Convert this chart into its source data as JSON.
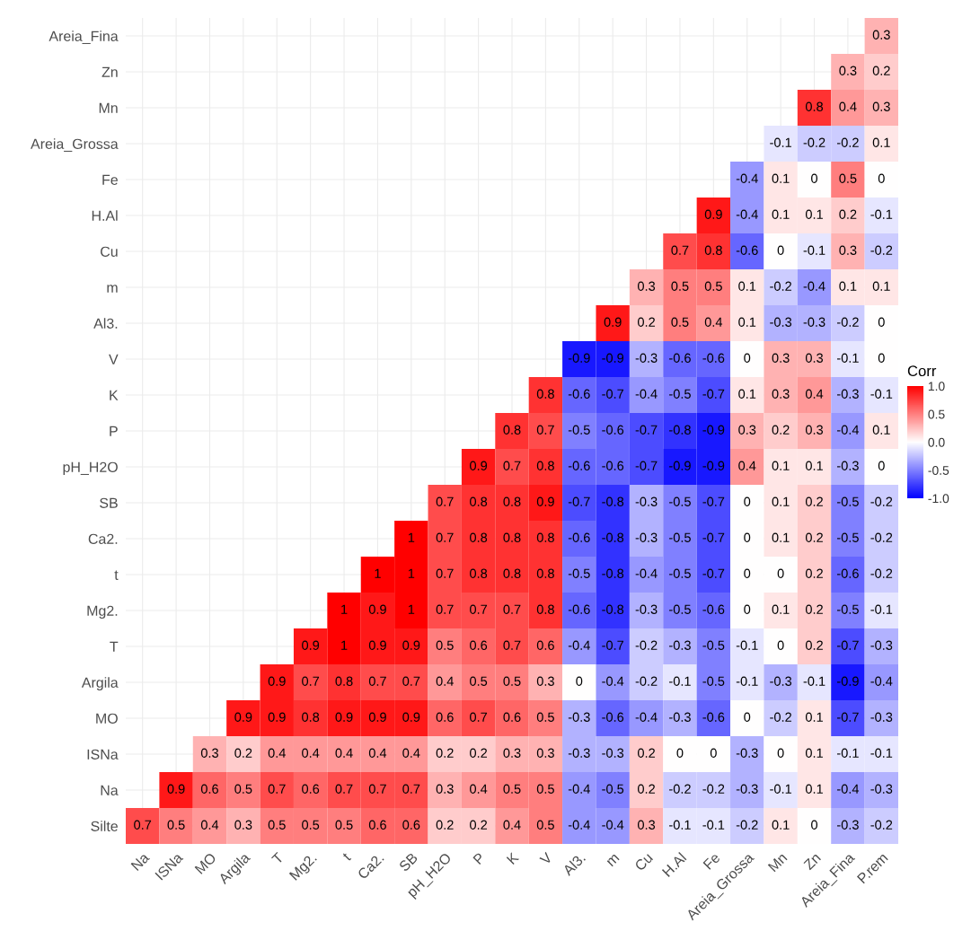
{
  "chart_data": {
    "type": "heatmap",
    "categories": [
      "Na",
      "ISNa",
      "MO",
      "Argila",
      "T",
      "Mg2.",
      "t",
      "Ca2.",
      "SB",
      "pH_H2O",
      "P",
      "K",
      "V",
      "Al3.",
      "m",
      "Cu",
      "H.Al",
      "Fe",
      "Areia_Grossa",
      "Mn",
      "Zn",
      "Areia_Fina",
      "P.rem"
    ],
    "y_categories": [
      "Areia_Fina",
      "Zn",
      "Mn",
      "Areia_Grossa",
      "Fe",
      "H.Al",
      "Cu",
      "m",
      "Al3.",
      "V",
      "K",
      "P",
      "pH_H2O",
      "SB",
      "Ca2.",
      "t",
      "Mg2.",
      "T",
      "Argila",
      "MO",
      "ISNa",
      "Na",
      "Silte"
    ],
    "cells": [
      [
        null,
        null,
        null,
        null,
        null,
        null,
        null,
        null,
        null,
        null,
        null,
        null,
        null,
        null,
        null,
        null,
        null,
        null,
        null,
        null,
        null,
        null,
        0.3
      ],
      [
        null,
        null,
        null,
        null,
        null,
        null,
        null,
        null,
        null,
        null,
        null,
        null,
        null,
        null,
        null,
        null,
        null,
        null,
        null,
        null,
        null,
        0.3,
        0.2
      ],
      [
        null,
        null,
        null,
        null,
        null,
        null,
        null,
        null,
        null,
        null,
        null,
        null,
        null,
        null,
        null,
        null,
        null,
        null,
        null,
        null,
        0.8,
        0.4,
        0.3
      ],
      [
        null,
        null,
        null,
        null,
        null,
        null,
        null,
        null,
        null,
        null,
        null,
        null,
        null,
        null,
        null,
        null,
        null,
        null,
        null,
        -0.1,
        -0.2,
        -0.2,
        0.1
      ],
      [
        null,
        null,
        null,
        null,
        null,
        null,
        null,
        null,
        null,
        null,
        null,
        null,
        null,
        null,
        null,
        null,
        null,
        null,
        -0.4,
        0.1,
        0,
        0.5,
        0
      ],
      [
        null,
        null,
        null,
        null,
        null,
        null,
        null,
        null,
        null,
        null,
        null,
        null,
        null,
        null,
        null,
        null,
        null,
        0.9,
        -0.4,
        0.1,
        0.1,
        0.2,
        -0.1
      ],
      [
        null,
        null,
        null,
        null,
        null,
        null,
        null,
        null,
        null,
        null,
        null,
        null,
        null,
        null,
        null,
        null,
        0.7,
        0.8,
        -0.6,
        0,
        -0.1,
        0.3,
        -0.2
      ],
      [
        null,
        null,
        null,
        null,
        null,
        null,
        null,
        null,
        null,
        null,
        null,
        null,
        null,
        null,
        null,
        0.3,
        0.5,
        0.5,
        0.1,
        -0.2,
        -0.4,
        0.1,
        0.1
      ],
      [
        null,
        null,
        null,
        null,
        null,
        null,
        null,
        null,
        null,
        null,
        null,
        null,
        null,
        null,
        0.9,
        0.2,
        0.5,
        0.4,
        0.1,
        -0.3,
        -0.3,
        -0.2,
        0
      ],
      [
        null,
        null,
        null,
        null,
        null,
        null,
        null,
        null,
        null,
        null,
        null,
        null,
        null,
        -0.9,
        -0.9,
        -0.3,
        -0.6,
        -0.6,
        0,
        0.3,
        0.3,
        -0.1,
        0
      ],
      [
        null,
        null,
        null,
        null,
        null,
        null,
        null,
        null,
        null,
        null,
        null,
        null,
        0.8,
        -0.6,
        -0.7,
        -0.4,
        -0.5,
        -0.7,
        0.1,
        0.3,
        0.4,
        -0.3,
        -0.1
      ],
      [
        null,
        null,
        null,
        null,
        null,
        null,
        null,
        null,
        null,
        null,
        null,
        0.8,
        0.7,
        -0.5,
        -0.6,
        -0.7,
        -0.8,
        -0.9,
        0.3,
        0.2,
        0.3,
        -0.4,
        0.1
      ],
      [
        null,
        null,
        null,
        null,
        null,
        null,
        null,
        null,
        null,
        null,
        0.9,
        0.7,
        0.8,
        -0.6,
        -0.6,
        -0.7,
        -0.9,
        -0.9,
        0.4,
        0.1,
        0.1,
        -0.3,
        0
      ],
      [
        null,
        null,
        null,
        null,
        null,
        null,
        null,
        null,
        null,
        0.7,
        0.8,
        0.8,
        0.9,
        -0.7,
        -0.8,
        -0.3,
        -0.5,
        -0.7,
        0,
        0.1,
        0.2,
        -0.5,
        -0.2
      ],
      [
        null,
        null,
        null,
        null,
        null,
        null,
        null,
        null,
        1,
        0.7,
        0.8,
        0.8,
        0.8,
        -0.6,
        -0.8,
        -0.3,
        -0.5,
        -0.7,
        0,
        0.1,
        0.2,
        -0.5,
        -0.2
      ],
      [
        null,
        null,
        null,
        null,
        null,
        null,
        null,
        1,
        1,
        0.7,
        0.8,
        0.8,
        0.8,
        -0.5,
        -0.8,
        -0.4,
        -0.5,
        -0.7,
        0,
        0,
        0.2,
        -0.6,
        -0.2
      ],
      [
        null,
        null,
        null,
        null,
        null,
        null,
        1,
        0.9,
        1,
        0.7,
        0.7,
        0.7,
        0.8,
        -0.6,
        -0.8,
        -0.3,
        -0.5,
        -0.6,
        0,
        0.1,
        0.2,
        -0.5,
        -0.1
      ],
      [
        null,
        null,
        null,
        null,
        null,
        0.9,
        1,
        0.9,
        0.9,
        0.5,
        0.6,
        0.7,
        0.6,
        -0.4,
        -0.7,
        -0.2,
        -0.3,
        -0.5,
        -0.1,
        0,
        0.2,
        -0.7,
        -0.3
      ],
      [
        null,
        null,
        null,
        null,
        0.9,
        0.7,
        0.8,
        0.7,
        0.7,
        0.4,
        0.5,
        0.5,
        0.3,
        0,
        -0.4,
        -0.2,
        -0.1,
        -0.5,
        -0.1,
        -0.3,
        -0.1,
        -0.9,
        -0.4
      ],
      [
        null,
        null,
        null,
        0.9,
        0.9,
        0.8,
        0.9,
        0.9,
        0.9,
        0.6,
        0.7,
        0.6,
        0.5,
        -0.3,
        -0.6,
        -0.4,
        -0.3,
        -0.6,
        0,
        -0.2,
        0.1,
        -0.7,
        -0.3
      ],
      [
        null,
        null,
        0.3,
        0.2,
        0.4,
        0.4,
        0.4,
        0.4,
        0.4,
        0.2,
        0.2,
        0.3,
        0.3,
        -0.3,
        -0.3,
        0.2,
        0,
        0,
        -0.3,
        0,
        0.1,
        -0.1,
        -0.1
      ],
      [
        null,
        0.9,
        0.6,
        0.5,
        0.7,
        0.6,
        0.7,
        0.7,
        0.7,
        0.3,
        0.4,
        0.5,
        0.5,
        -0.4,
        -0.5,
        0.2,
        -0.2,
        -0.2,
        -0.3,
        -0.1,
        0.1,
        -0.4,
        -0.3
      ],
      [
        0.7,
        0.5,
        0.4,
        0.3,
        0.5,
        0.5,
        0.5,
        0.6,
        0.6,
        0.2,
        0.2,
        0.4,
        0.5,
        -0.4,
        -0.4,
        0.3,
        -0.1,
        -0.1,
        -0.2,
        0.1,
        0,
        -0.3,
        -0.2
      ]
    ],
    "clabel": "Corr",
    "clim": [
      -1,
      1
    ],
    "cticks": [
      {
        "value": -1,
        "label": "-1.0"
      },
      {
        "value": -0.5,
        "label": "-0.5"
      },
      {
        "value": 0,
        "label": "0.0"
      },
      {
        "value": 0.5,
        "label": "0.5"
      },
      {
        "value": 1,
        "label": "1.0"
      }
    ],
    "data_labels": true,
    "grid": true
  }
}
